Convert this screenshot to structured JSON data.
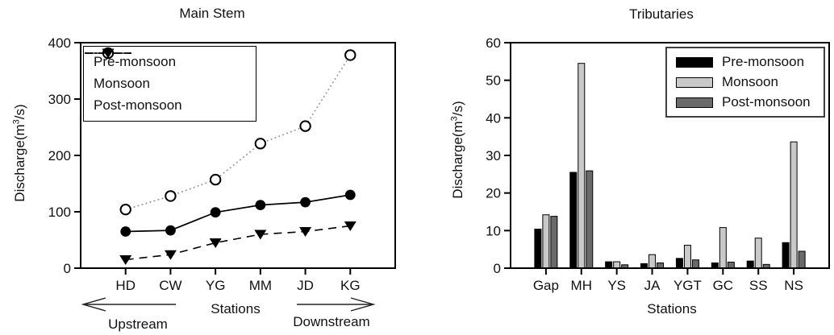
{
  "figure": {
    "background": "#ffffff",
    "text_color": "#111111",
    "axis_color": "#000000"
  },
  "chart_data": [
    {
      "type": "line",
      "title": "Main Stem",
      "ylabel": {
        "pre": "Discharge(m",
        "sup": "3",
        "post": "/s)"
      },
      "xlabel": "Stations",
      "ylim": [
        0,
        400
      ],
      "yticks": [
        0,
        100,
        200,
        300,
        400
      ],
      "categories": [
        "HD",
        "CW",
        "YG",
        "MM",
        "JD",
        "KG"
      ],
      "grid": false,
      "legend_position": "top-left",
      "series": [
        {
          "name": "Pre-monsoon",
          "marker": "filled-circle",
          "line": "solid",
          "color": "#000000",
          "values": [
            65,
            67,
            99,
            112,
            117,
            130
          ]
        },
        {
          "name": "Monsoon",
          "marker": "open-circle",
          "line": "dotted",
          "color": "#000000",
          "values": [
            104,
            128,
            157,
            221,
            252,
            378
          ]
        },
        {
          "name": "Post-monsoon",
          "marker": "filled-triangle-down",
          "line": "dashed",
          "color": "#000000",
          "values": [
            15,
            24,
            45,
            60,
            65,
            75
          ]
        }
      ],
      "annotations": {
        "upstream": "Upstream",
        "downstream": "Downstream"
      }
    },
    {
      "type": "bar",
      "title": "Tributaries",
      "ylabel": {
        "pre": "Discharge(m",
        "sup": "3",
        "post": "/s)"
      },
      "xlabel": "Stations",
      "ylim": [
        0,
        60
      ],
      "yticks": [
        0,
        10,
        20,
        30,
        40,
        50,
        60
      ],
      "categories": [
        "Gap",
        "MH",
        "YS",
        "JA",
        "YGT",
        "GC",
        "SS",
        "NS"
      ],
      "grid": false,
      "legend_position": "top-right",
      "series": [
        {
          "name": "Pre-monsoon",
          "color": "#000000",
          "values": [
            10.4,
            25.5,
            1.7,
            1.2,
            2.6,
            1.4,
            1.9,
            6.8
          ]
        },
        {
          "name": "Monsoon",
          "color": "#c9c9c9",
          "values": [
            14.2,
            54.5,
            1.7,
            3.6,
            6.1,
            10.8,
            8.0,
            33.6
          ]
        },
        {
          "name": "Post-monsoon",
          "color": "#6a6a6a",
          "values": [
            13.8,
            25.9,
            0.9,
            1.4,
            2.2,
            1.6,
            1.0,
            4.5
          ]
        }
      ]
    }
  ]
}
